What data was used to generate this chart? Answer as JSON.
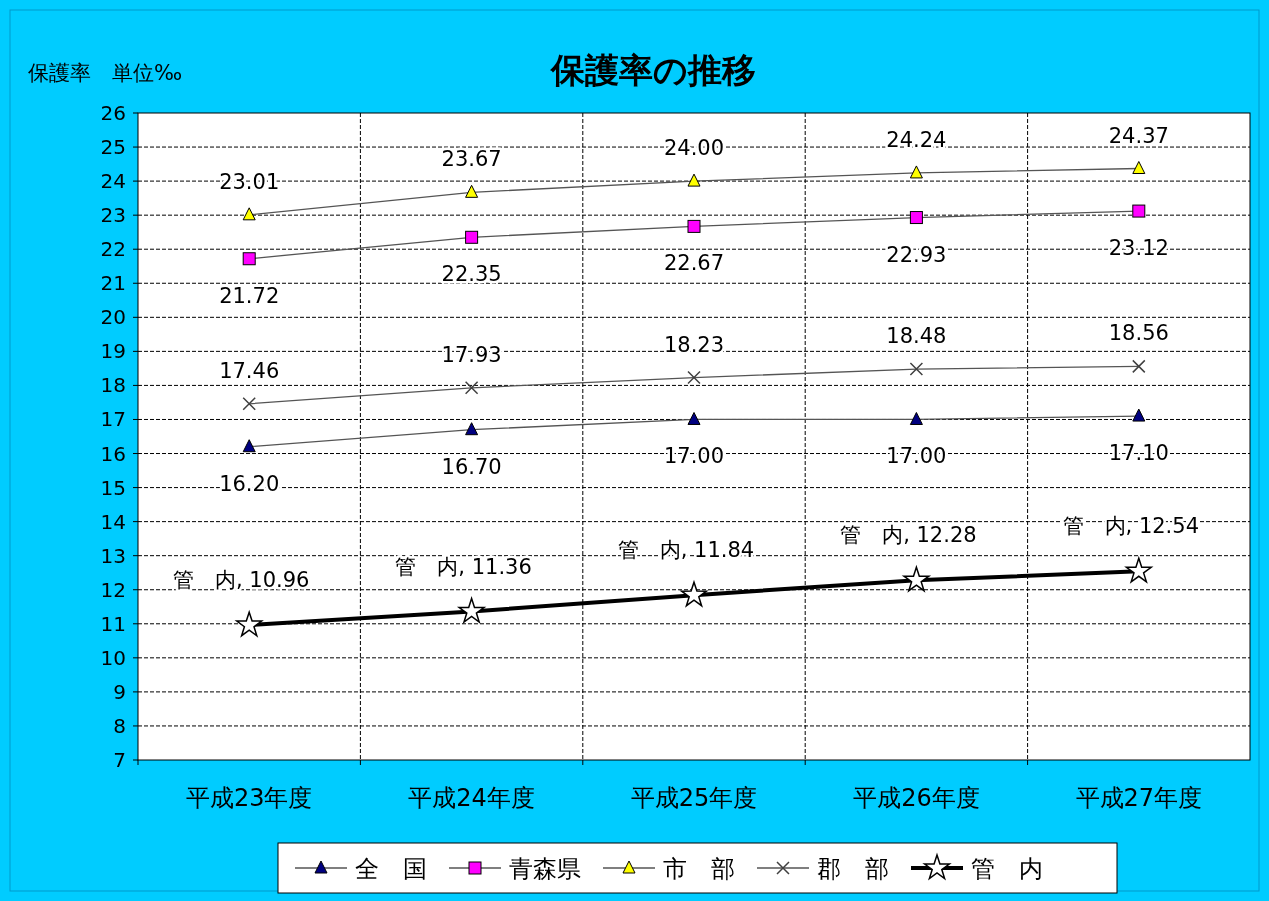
{
  "chart_data": {
    "type": "line",
    "title": "保護率の推移",
    "ylabel": "保護率　単位‰",
    "categories": [
      "平成23年度",
      "平成24年度",
      "平成25年度",
      "平成26年度",
      "平成27年度"
    ],
    "ylim": [
      7,
      26
    ],
    "yticks": [
      7,
      8,
      9,
      10,
      11,
      12,
      13,
      14,
      15,
      16,
      17,
      18,
      19,
      20,
      21,
      22,
      23,
      24,
      25,
      26
    ],
    "grid": true,
    "legend": "bottom",
    "line_style": "solid",
    "series": [
      {
        "name": "全　国",
        "color": "#000080",
        "marker": "triangle",
        "values": [
          16.2,
          16.7,
          17.0,
          17.0,
          17.1
        ],
        "value_labels": [
          "16.20",
          "16.70",
          "17.00",
          "17.00",
          "17.10"
        ]
      },
      {
        "name": "青森県",
        "color": "#ff00ff",
        "marker": "square",
        "values": [
          21.72,
          22.35,
          22.67,
          22.93,
          23.12
        ],
        "value_labels": [
          "21.72",
          "22.35",
          "22.67",
          "22.93",
          "23.12"
        ]
      },
      {
        "name": "市　部",
        "color": "#ffff00",
        "marker": "triangle",
        "values": [
          23.01,
          23.67,
          24.0,
          24.24,
          24.37
        ],
        "value_labels": [
          "23.01",
          "23.67",
          "24.00",
          "24.24",
          "24.37"
        ]
      },
      {
        "name": "郡　部",
        "color": "#404040",
        "marker": "cross",
        "values": [
          17.46,
          17.93,
          18.23,
          18.48,
          18.56
        ],
        "value_labels": [
          "17.46",
          "17.93",
          "18.23",
          "18.48",
          "18.56"
        ]
      },
      {
        "name": "管　内",
        "color": "#000000",
        "marker": "star",
        "values": [
          10.96,
          11.36,
          11.84,
          12.28,
          12.54
        ],
        "value_labels": [
          "管　内, 10.96",
          "管　内, 11.36",
          "管　内, 11.84",
          "管　内, 12.28",
          "管　内, 12.54"
        ]
      }
    ]
  }
}
